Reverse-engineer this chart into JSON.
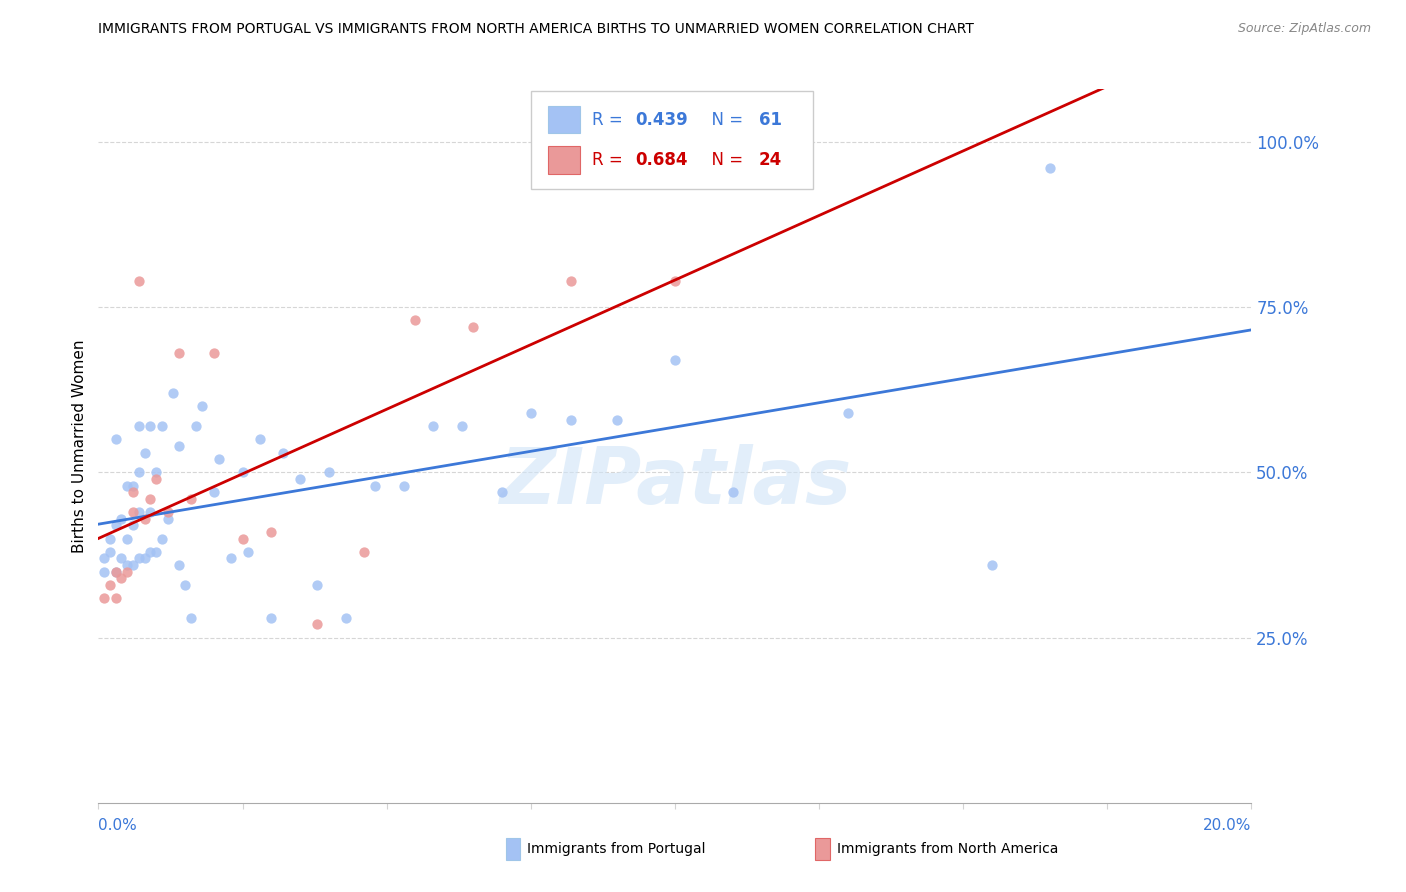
{
  "title": "IMMIGRANTS FROM PORTUGAL VS IMMIGRANTS FROM NORTH AMERICA BIRTHS TO UNMARRIED WOMEN CORRELATION CHART",
  "source": "Source: ZipAtlas.com",
  "ylabel": "Births to Unmarried Women",
  "legend_blue_r": "0.439",
  "legend_blue_n": "61",
  "legend_pink_r": "0.684",
  "legend_pink_n": "24",
  "blue_color": "#a4c2f4",
  "pink_color": "#ea9999",
  "blue_line_color": "#3c78d8",
  "pink_line_color": "#cc0000",
  "axis_label_color": "#3c78d8",
  "watermark": "ZIPatlas",
  "blue_scatter_x": [
    0.001,
    0.001,
    0.002,
    0.002,
    0.003,
    0.003,
    0.003,
    0.004,
    0.004,
    0.005,
    0.005,
    0.005,
    0.006,
    0.006,
    0.006,
    0.007,
    0.007,
    0.007,
    0.007,
    0.008,
    0.008,
    0.009,
    0.009,
    0.009,
    0.01,
    0.01,
    0.011,
    0.011,
    0.012,
    0.013,
    0.014,
    0.014,
    0.015,
    0.016,
    0.017,
    0.018,
    0.02,
    0.021,
    0.023,
    0.025,
    0.026,
    0.028,
    0.03,
    0.032,
    0.035,
    0.038,
    0.04,
    0.043,
    0.048,
    0.053,
    0.058,
    0.063,
    0.07,
    0.075,
    0.082,
    0.09,
    0.1,
    0.11,
    0.13,
    0.155,
    0.165
  ],
  "blue_scatter_y": [
    0.37,
    0.35,
    0.38,
    0.4,
    0.35,
    0.42,
    0.55,
    0.37,
    0.43,
    0.36,
    0.4,
    0.48,
    0.36,
    0.42,
    0.48,
    0.37,
    0.44,
    0.5,
    0.57,
    0.37,
    0.53,
    0.38,
    0.44,
    0.57,
    0.38,
    0.5,
    0.4,
    0.57,
    0.43,
    0.62,
    0.36,
    0.54,
    0.33,
    0.28,
    0.57,
    0.6,
    0.47,
    0.52,
    0.37,
    0.5,
    0.38,
    0.55,
    0.28,
    0.53,
    0.49,
    0.33,
    0.5,
    0.28,
    0.48,
    0.48,
    0.57,
    0.57,
    0.47,
    0.59,
    0.58,
    0.58,
    0.67,
    0.47,
    0.59,
    0.36,
    0.96
  ],
  "pink_scatter_x": [
    0.001,
    0.002,
    0.003,
    0.003,
    0.004,
    0.005,
    0.006,
    0.006,
    0.007,
    0.008,
    0.009,
    0.01,
    0.012,
    0.014,
    0.016,
    0.02,
    0.025,
    0.03,
    0.038,
    0.046,
    0.055,
    0.065,
    0.082,
    0.1
  ],
  "pink_scatter_y": [
    0.31,
    0.33,
    0.31,
    0.35,
    0.34,
    0.35,
    0.44,
    0.47,
    0.79,
    0.43,
    0.46,
    0.49,
    0.44,
    0.68,
    0.46,
    0.68,
    0.4,
    0.41,
    0.27,
    0.38,
    0.73,
    0.72,
    0.79,
    0.79
  ],
  "xlim": [
    0,
    0.2
  ],
  "ylim": [
    0.0,
    1.08
  ],
  "yticks": [
    0.25,
    0.5,
    0.75,
    1.0
  ],
  "ytick_labels": [
    "25.0%",
    "50.0%",
    "75.0%",
    "100.0%"
  ],
  "xtick_positions": [
    0.0,
    0.025,
    0.05,
    0.075,
    0.1,
    0.125,
    0.15,
    0.175,
    0.2
  ],
  "dot_size": 55,
  "background_color": "#ffffff",
  "grid_color": "#cccccc"
}
